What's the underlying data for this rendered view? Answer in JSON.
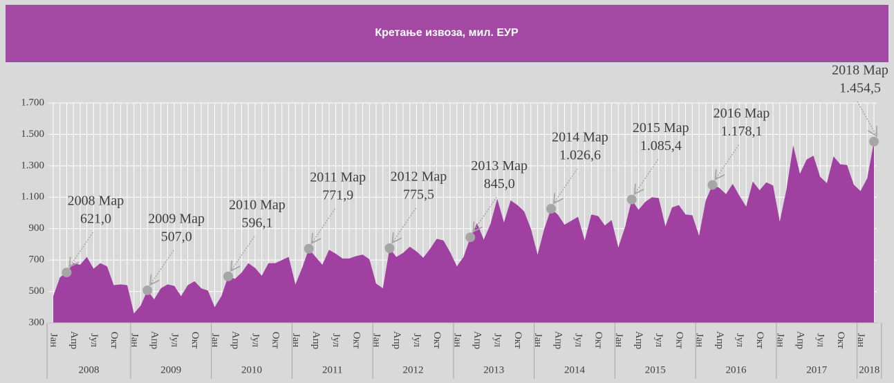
{
  "chart_data": {
    "type": "area",
    "title": "Кретање извоза, мил. ЕУР",
    "categories": [
      "Јан",
      null,
      null,
      "Апр",
      null,
      null,
      "Јул",
      null,
      null,
      "Окт",
      null,
      null,
      "Јан",
      null,
      null,
      "Апр",
      null,
      null,
      "Јул",
      null,
      null,
      "Окт",
      null,
      null,
      "Јан",
      null,
      null,
      "Апр",
      null,
      null,
      "Јул",
      null,
      null,
      "Окт",
      null,
      null,
      "Јан",
      null,
      null,
      "Апр",
      null,
      null,
      "Јул",
      null,
      null,
      "Окт",
      null,
      null,
      "Јан",
      null,
      null,
      "Апр",
      null,
      null,
      "Јул",
      null,
      null,
      "Окт",
      null,
      null,
      "Јан",
      null,
      null,
      "Апр",
      null,
      null,
      "Јул",
      null,
      null,
      "Окт",
      null,
      null,
      "Јан",
      null,
      null,
      "Апр",
      null,
      null,
      "Јул",
      null,
      null,
      "Окт",
      null,
      null,
      "Јан",
      null,
      null,
      "Апр",
      null,
      null,
      "Јул",
      null,
      null,
      "Окт",
      null,
      null,
      "Јан",
      null,
      null,
      "Апр",
      null,
      null,
      "Јул",
      null,
      null,
      "Окт",
      null,
      null,
      "Јан",
      null,
      null,
      "Апр",
      null,
      null,
      "Јул",
      null,
      null,
      "Окт",
      null,
      null,
      "Јан",
      null,
      null
    ],
    "years": [
      "2008",
      "2009",
      "2010",
      "2011",
      "2012",
      "2013",
      "2014",
      "2015",
      "2016",
      "2017",
      "2018"
    ],
    "values": [
      470,
      590,
      621.0,
      680,
      670,
      720,
      645,
      680,
      660,
      540,
      545,
      540,
      360,
      410,
      507.0,
      450,
      520,
      545,
      535,
      470,
      540,
      565,
      520,
      505,
      400,
      470,
      596.1,
      580,
      620,
      680,
      650,
      600,
      680,
      680,
      700,
      720,
      545,
      650,
      771.9,
      720,
      670,
      765,
      740,
      710,
      710,
      725,
      735,
      705,
      550,
      520,
      775.5,
      720,
      745,
      785,
      755,
      715,
      770,
      835,
      825,
      750,
      660,
      720,
      845.0,
      935,
      830,
      930,
      1090,
      940,
      1080,
      1050,
      1010,
      900,
      735,
      900,
      1026.6,
      990,
      925,
      950,
      975,
      825,
      990,
      980,
      920,
      955,
      780,
      910,
      1085.4,
      1020,
      1070,
      1100,
      1095,
      915,
      1035,
      1050,
      990,
      985,
      855,
      1080,
      1178.1,
      1160,
      1120,
      1185,
      1110,
      1040,
      1200,
      1145,
      1195,
      1175,
      945,
      1150,
      1430,
      1250,
      1340,
      1365,
      1230,
      1190,
      1360,
      1310,
      1305,
      1180,
      1140,
      1220,
      1454.5
    ],
    "color": "#a040a0",
    "annotations": [
      {
        "text": "2008 Мар",
        "value_label": "621,0"
      },
      {
        "text": "2009 Мар",
        "value_label": "507,0"
      },
      {
        "text": "2010 Мар",
        "value_label": "596,1"
      },
      {
        "text": "2011 Мар",
        "value_label": "771,9"
      },
      {
        "text": "2012 Мар",
        "value_label": "775,5"
      },
      {
        "text": "2013 Мар",
        "value_label": "845,0"
      },
      {
        "text": "2014 Мар",
        "value_label": "1.026,6"
      },
      {
        "text": "2015 Мар",
        "value_label": "1.085,4"
      },
      {
        "text": "2016 Мар",
        "value_label": "1.178,1"
      },
      {
        "text": "2018 Мар",
        "value_label": "1.454,5"
      }
    ],
    "ylim": [
      300,
      1700
    ],
    "yticks": [
      300,
      500,
      700,
      900,
      {
        "value": 1100,
        "label": "1.100"
      },
      {
        "value": 1300,
        "label": "1.300"
      },
      {
        "value": 1500,
        "label": "1.500"
      },
      {
        "value": 1700,
        "label": "1.700"
      }
    ],
    "grid": true
  }
}
